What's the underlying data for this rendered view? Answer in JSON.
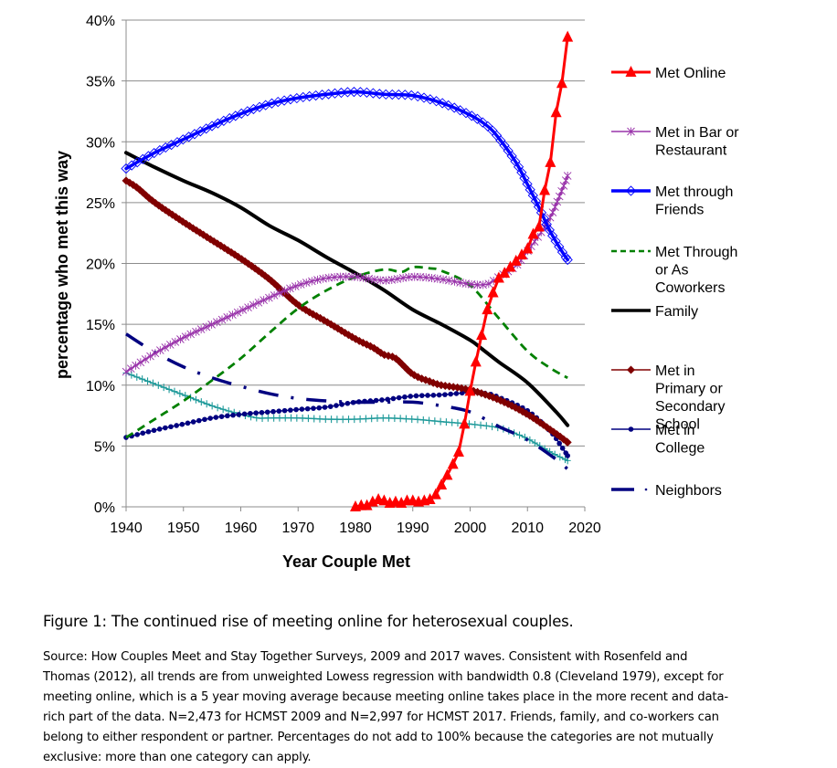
{
  "chart_data": {
    "type": "line",
    "title": "",
    "xlabel": "Year Couple Met",
    "ylabel": "percentage who met this way",
    "xlim": [
      1940,
      2020
    ],
    "ylim": [
      0,
      40
    ],
    "x_ticks": [
      "1940",
      "1950",
      "1960",
      "1970",
      "1980",
      "1990",
      "2000",
      "2010",
      "2020"
    ],
    "y_ticks": [
      "0%",
      "5%",
      "10%",
      "15%",
      "20%",
      "25%",
      "30%",
      "35%",
      "40%"
    ],
    "grid": "horizontal",
    "legend_position": "right",
    "series": [
      {
        "name": "Met Online",
        "color": "#FF0000",
        "marker": "triangle",
        "dash": "solid",
        "in_legend": true,
        "legend_lines": [
          "Met Online"
        ],
        "x": [
          1980,
          1981,
          1982,
          1983,
          1984,
          1985,
          1986,
          1987,
          1988,
          1989,
          1990,
          1991,
          1992,
          1993,
          1994,
          1995,
          1996,
          1997,
          1998,
          1999,
          2000,
          2001,
          2002,
          2003,
          2004,
          2005,
          2006,
          2007,
          2008,
          2009,
          2010,
          2011,
          2012,
          2013,
          2014,
          2015,
          2016,
          2017
        ],
        "y": [
          0.0,
          0.1,
          0.1,
          0.4,
          0.6,
          0.5,
          0.3,
          0.4,
          0.3,
          0.5,
          0.5,
          0.4,
          0.5,
          0.6,
          1.0,
          1.8,
          2.6,
          3.5,
          4.5,
          6.8,
          9.5,
          11.9,
          14.1,
          16.2,
          17.6,
          18.8,
          19.2,
          19.7,
          20.2,
          20.7,
          21.2,
          22.4,
          23.0,
          26.0,
          28.3,
          32.4,
          34.8,
          38.6
        ]
      },
      {
        "name": "Met in Bar or Restaurant",
        "color": "#9933AA",
        "marker": "star",
        "dash": "solid",
        "in_legend": true,
        "legend_lines": [
          "Met in Bar or",
          "Restaurant"
        ],
        "x": [
          1940,
          1945,
          1950,
          1955,
          1960,
          1965,
          1970,
          1975,
          1980,
          1985,
          1990,
          1995,
          2000,
          2003,
          2005,
          2008,
          2010,
          2012,
          2014,
          2016,
          2017
        ],
        "y": [
          11.1,
          12.6,
          13.9,
          15.0,
          16.1,
          17.2,
          18.2,
          18.8,
          18.9,
          18.6,
          18.9,
          18.7,
          18.3,
          18.3,
          18.9,
          19.8,
          21.0,
          22.3,
          23.8,
          26.0,
          27.2
        ]
      },
      {
        "name": "Met through Friends",
        "color": "#0000FF",
        "marker": "diamond-open",
        "dash": "solid",
        "in_legend": true,
        "legend_lines": [
          "Met through",
          "Friends"
        ],
        "x": [
          1940,
          1945,
          1950,
          1955,
          1960,
          1965,
          1970,
          1975,
          1980,
          1985,
          1990,
          1995,
          2000,
          2003,
          2005,
          2008,
          2010,
          2012,
          2014,
          2016,
          2017
        ],
        "y": [
          27.8,
          29.1,
          30.2,
          31.3,
          32.3,
          33.1,
          33.6,
          33.9,
          34.1,
          33.9,
          33.8,
          33.2,
          32.2,
          31.3,
          30.3,
          28.3,
          26.5,
          24.6,
          22.6,
          21.0,
          20.3
        ]
      },
      {
        "name": "Met Through or As Coworkers",
        "color": "#008000",
        "marker": "none",
        "dash": "dashed",
        "in_legend": true,
        "legend_lines": [
          "Met Through",
          "or As",
          "Coworkers"
        ],
        "x": [
          1940,
          1945,
          1950,
          1955,
          1960,
          1965,
          1970,
          1975,
          1980,
          1985,
          1988,
          1990,
          1993,
          1995,
          2000,
          2005,
          2010,
          2014,
          2017
        ],
        "y": [
          5.7,
          7.2,
          8.7,
          10.4,
          12.2,
          14.3,
          16.3,
          17.8,
          18.9,
          19.5,
          19.3,
          19.7,
          19.6,
          19.4,
          18.2,
          15.5,
          12.8,
          11.4,
          10.6
        ]
      },
      {
        "name": "Family",
        "color": "#000000",
        "marker": "none",
        "dash": "solid",
        "in_legend": true,
        "legend_lines": [
          "Family"
        ],
        "x": [
          1940,
          1945,
          1950,
          1955,
          1960,
          1965,
          1970,
          1975,
          1980,
          1985,
          1990,
          1995,
          2000,
          2002,
          2005,
          2010,
          2015,
          2017
        ],
        "y": [
          29.1,
          27.9,
          26.8,
          25.8,
          24.6,
          23.1,
          21.9,
          20.5,
          19.2,
          17.8,
          16.2,
          15.0,
          13.7,
          13.0,
          11.9,
          10.2,
          7.8,
          6.7
        ]
      },
      {
        "name": "Met in Primary or Secondary School",
        "color": "#800000",
        "marker": "diamond",
        "dash": "solid",
        "in_legend": true,
        "legend_lines": [
          "Met in",
          "Primary or",
          "Secondary",
          "School"
        ],
        "x": [
          1940,
          1942,
          1945,
          1950,
          1955,
          1960,
          1965,
          1970,
          1975,
          1980,
          1983,
          1985,
          1987,
          1990,
          1993,
          1995,
          2000,
          2005,
          2010,
          2015,
          2017
        ],
        "y": [
          26.8,
          26.2,
          25.0,
          23.4,
          21.9,
          20.4,
          18.7,
          16.6,
          15.2,
          13.8,
          13.1,
          12.5,
          12.2,
          10.9,
          10.3,
          10.0,
          9.6,
          8.8,
          7.6,
          6.0,
          5.3
        ]
      },
      {
        "name": "Met in College",
        "color": "#000080",
        "marker": "dot",
        "dash": "solid",
        "in_legend": true,
        "legend_lines": [
          "Met in",
          "College"
        ],
        "x": [
          1940,
          1945,
          1950,
          1955,
          1960,
          1965,
          1970,
          1975,
          1980,
          1985,
          1990,
          1995,
          2000,
          2003,
          2005,
          2010,
          2014,
          2016,
          2017
        ],
        "y": [
          5.7,
          6.3,
          6.8,
          7.3,
          7.6,
          7.8,
          8.0,
          8.2,
          8.6,
          8.8,
          9.1,
          9.2,
          9.4,
          9.3,
          9.0,
          7.9,
          6.2,
          4.9,
          4.2
        ]
      },
      {
        "name": "Neighbors",
        "color": "#000080",
        "marker": "none",
        "dash": "dash-dot",
        "in_legend": true,
        "legend_lines": [
          "Neighbors"
        ],
        "x": [
          1940,
          1945,
          1950,
          1955,
          1960,
          1965,
          1970,
          1975,
          1980,
          1985,
          1990,
          1995,
          2000,
          2005,
          2010,
          2015,
          2017
        ],
        "y": [
          14.2,
          12.7,
          11.5,
          10.6,
          9.9,
          9.3,
          8.9,
          8.7,
          8.6,
          8.6,
          8.6,
          8.3,
          7.8,
          6.6,
          5.5,
          3.9,
          3.1
        ]
      },
      {
        "name": "(unlabeled series)",
        "color": "#1F9A9A",
        "marker": "plus",
        "dash": "solid",
        "in_legend": false,
        "legend_lines": [],
        "x": [
          1940,
          1945,
          1950,
          1955,
          1960,
          1963,
          1965,
          1970,
          1975,
          1980,
          1985,
          1990,
          1995,
          2000,
          2005,
          2008,
          2010,
          2014,
          2017
        ],
        "y": [
          11.0,
          10.1,
          9.2,
          8.3,
          7.6,
          7.3,
          7.3,
          7.3,
          7.2,
          7.2,
          7.3,
          7.2,
          7.0,
          6.8,
          6.5,
          6.0,
          5.6,
          4.5,
          3.8
        ]
      }
    ]
  },
  "caption": {
    "title": "Figure 1: The continued rise of meeting online for heterosexual couples.",
    "lines": [
      "Source: How Couples Meet and Stay Together Surveys, 2009 and 2017 waves. Consistent with Rosenfeld and",
      "Thomas (2012), all trends are from unweighted Lowess regression with bandwidth 0.8 (Cleveland 1979), except for",
      "meeting online, which is a 5 year moving average because meeting online takes place in the more recent and data-",
      "rich part of the data. N=2,473 for HCMST 2009 and N=2,997 for HCMST 2017. Friends, family, and co-workers can",
      "belong to either respondent or partner. Percentages do not add to 100% because the categories are not mutually",
      "exclusive: more than one category can apply."
    ]
  }
}
